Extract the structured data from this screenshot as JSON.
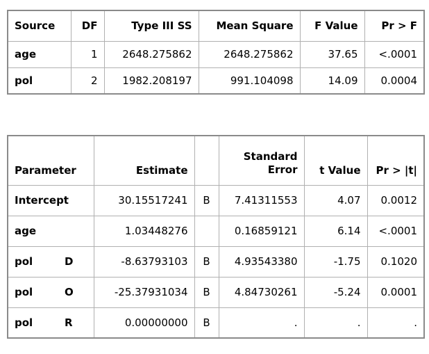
{
  "anova": {
    "headers": [
      "Source",
      "DF",
      "Type III SS",
      "Mean Square",
      "F Value",
      "Pr > F"
    ],
    "rows": [
      {
        "source": "age",
        "df": "1",
        "ss": "2648.275862",
        "ms": "2648.275862",
        "f": "37.65",
        "p": "<.0001"
      },
      {
        "source": "pol",
        "df": "2",
        "ss": "1982.208197",
        "ms": "991.104098",
        "f": "14.09",
        "p": "0.0004"
      }
    ]
  },
  "params": {
    "headers": {
      "parameter": "Parameter",
      "estimate": "Estimate",
      "flag": "",
      "stderr_line1": "Standard",
      "stderr_line2": "Error",
      "t": "t Value",
      "p": "Pr > |t|"
    },
    "rows": [
      {
        "name": "Intercept",
        "level": "",
        "estimate": "30.15517241",
        "flag": "B",
        "stderr": "7.41311553",
        "t": "4.07",
        "p": "0.0012"
      },
      {
        "name": "age",
        "level": "",
        "estimate": "1.03448276",
        "flag": "",
        "stderr": "0.16859121",
        "t": "6.14",
        "p": "<.0001"
      },
      {
        "name": "pol",
        "level": "D",
        "estimate": "-8.63793103",
        "flag": "B",
        "stderr": "4.93543380",
        "t": "-1.75",
        "p": "0.1020"
      },
      {
        "name": "pol",
        "level": "O",
        "estimate": "-25.37931034",
        "flag": "B",
        "stderr": "4.84730261",
        "t": "-5.24",
        "p": "0.0001"
      },
      {
        "name": "pol",
        "level": "R",
        "estimate": "0.00000000",
        "flag": "B",
        "stderr": ".",
        "t": ".",
        "p": "."
      }
    ]
  }
}
